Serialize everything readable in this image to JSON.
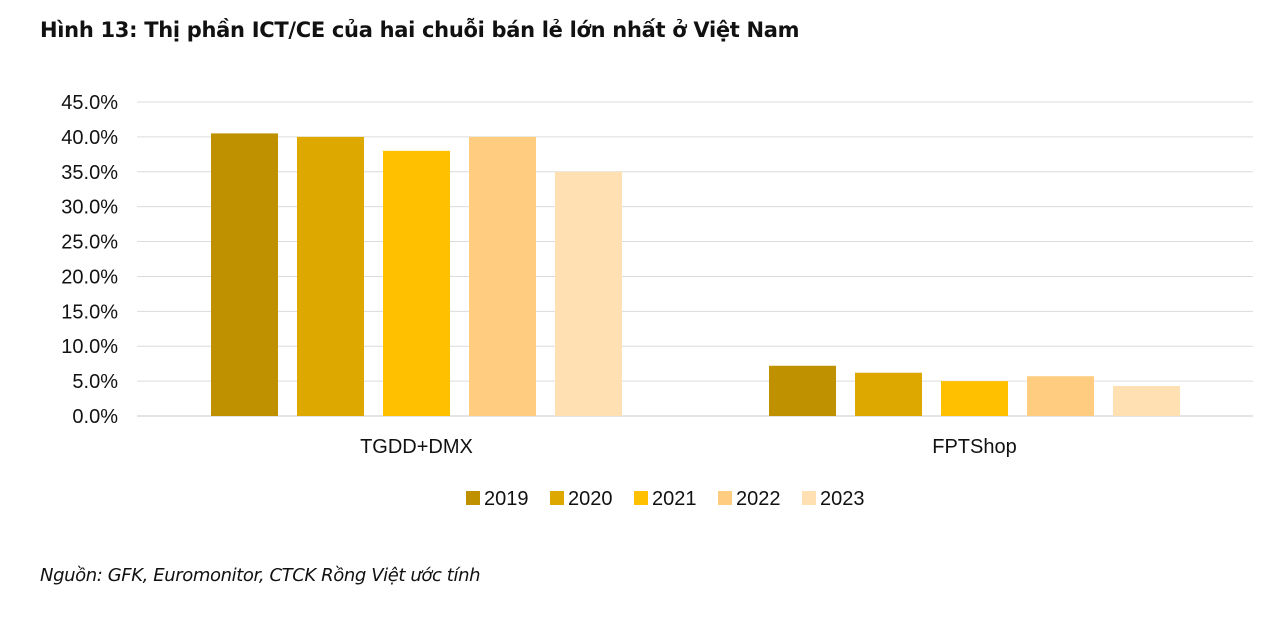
{
  "chart_data": {
    "type": "bar",
    "title": "Hình 13: Thị phần ICT/CE của hai chuỗi bán lẻ lớn nhất ở Việt Nam",
    "categories": [
      "TGDD+DMX",
      "FPTShop"
    ],
    "series": [
      {
        "name": "2019",
        "values": [
          40.5,
          7.2
        ],
        "color": "#BF9000"
      },
      {
        "name": "2020",
        "values": [
          40.0,
          6.2
        ],
        "color": "#DDA800"
      },
      {
        "name": "2021",
        "values": [
          38.0,
          5.0
        ],
        "color": "#FFC000"
      },
      {
        "name": "2022",
        "values": [
          40.0,
          5.7
        ],
        "color": "#FFCC80"
      },
      {
        "name": "2023",
        "values": [
          35.0,
          4.3
        ],
        "color": "#FFE0B3"
      }
    ],
    "ylim": [
      0,
      45
    ],
    "yticks": [
      "0.0%",
      "5.0%",
      "10.0%",
      "15.0%",
      "20.0%",
      "25.0%",
      "30.0%",
      "35.0%",
      "40.0%",
      "45.0%"
    ],
    "grid": true,
    "legend_position": "bottom",
    "xlabel": "",
    "ylabel": ""
  },
  "source_note": "Nguồn: GFK, Euromonitor, CTCK Rồng Việt ước tính"
}
